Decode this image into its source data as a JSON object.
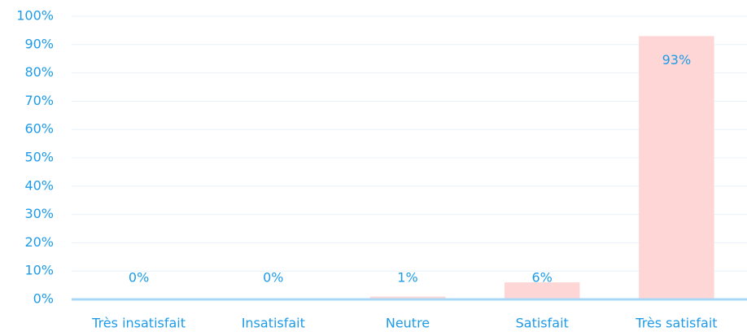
{
  "chart_data": {
    "type": "bar",
    "categories": [
      "Très insatisfait",
      "Insatisfait",
      "Neutre",
      "Satisfait",
      "Très satisfait"
    ],
    "values": [
      0,
      0,
      1,
      6,
      93
    ],
    "value_labels": [
      "0%",
      "0%",
      "1%",
      "6%",
      "93%"
    ],
    "color": "#ffd6d6",
    "ylim": [
      0,
      100
    ],
    "yticks": [
      {
        "value": 0,
        "label": "0%"
      },
      {
        "value": 10,
        "label": "10%"
      },
      {
        "value": 20,
        "label": "20%"
      },
      {
        "value": 30,
        "label": "30%"
      },
      {
        "value": 40,
        "label": "40%"
      },
      {
        "value": 50,
        "label": "50%"
      },
      {
        "value": 60,
        "label": "60%"
      },
      {
        "value": 70,
        "label": "70%"
      },
      {
        "value": 80,
        "label": "80%"
      },
      {
        "value": 90,
        "label": "90%"
      },
      {
        "value": 100,
        "label": "100%"
      }
    ],
    "grid": true
  }
}
